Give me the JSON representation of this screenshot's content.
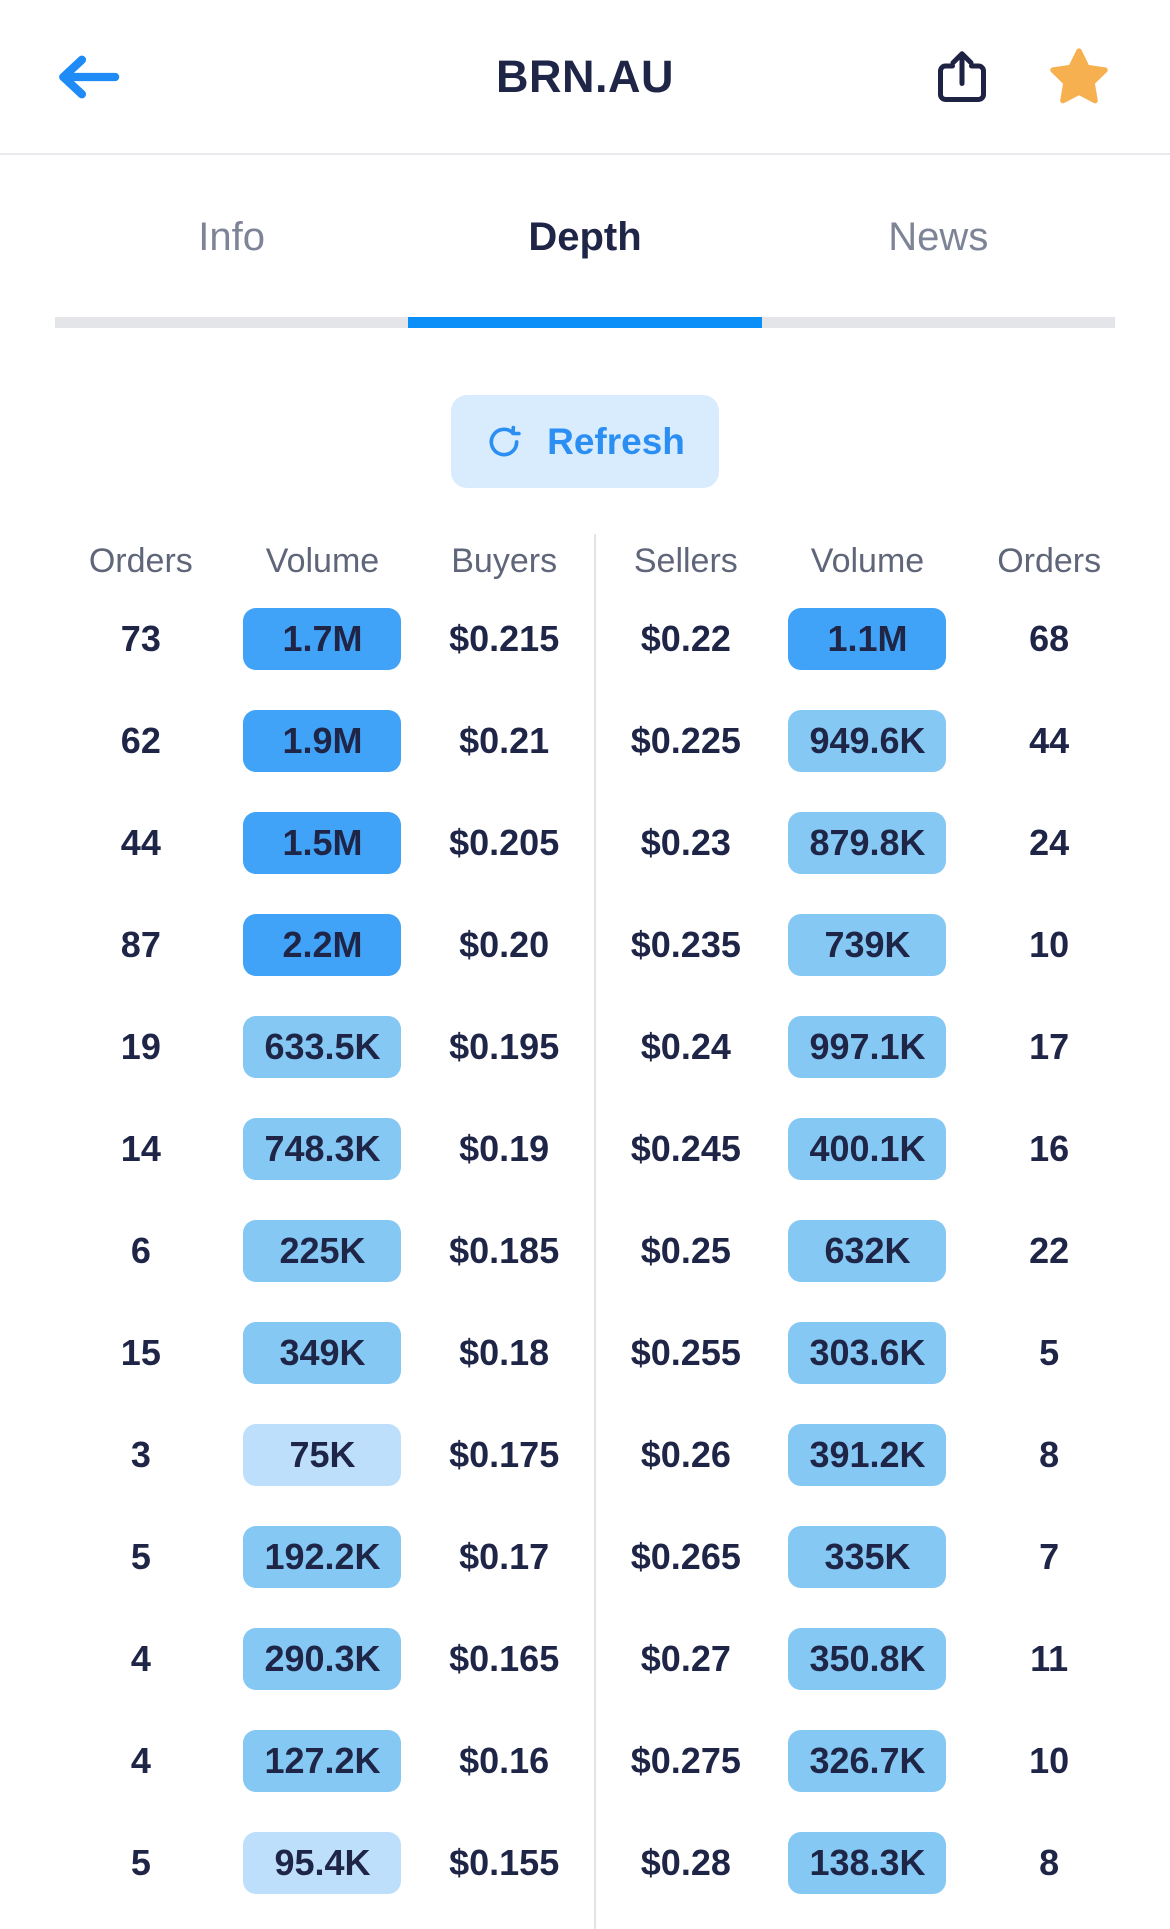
{
  "header": {
    "title": "BRN.AU"
  },
  "tabs": [
    {
      "label": "Info",
      "active": false
    },
    {
      "label": "Depth",
      "active": true
    },
    {
      "label": "News",
      "active": false
    }
  ],
  "refresh": {
    "label": "Refresh"
  },
  "depth_table": {
    "headers": [
      "Orders",
      "Volume",
      "Buyers",
      "Sellers",
      "Volume",
      "Orders"
    ],
    "rows": [
      {
        "bid_orders": "73",
        "bid_volume": "1.7M",
        "bid_level": "high",
        "bid_price": "$0.215",
        "ask_price": "$0.22",
        "ask_volume": "1.1M",
        "ask_level": "high",
        "ask_orders": "68"
      },
      {
        "bid_orders": "62",
        "bid_volume": "1.9M",
        "bid_level": "high",
        "bid_price": "$0.21",
        "ask_price": "$0.225",
        "ask_volume": "949.6K",
        "ask_level": "mid",
        "ask_orders": "44"
      },
      {
        "bid_orders": "44",
        "bid_volume": "1.5M",
        "bid_level": "high",
        "bid_price": "$0.205",
        "ask_price": "$0.23",
        "ask_volume": "879.8K",
        "ask_level": "mid",
        "ask_orders": "24"
      },
      {
        "bid_orders": "87",
        "bid_volume": "2.2M",
        "bid_level": "high",
        "bid_price": "$0.20",
        "ask_price": "$0.235",
        "ask_volume": "739K",
        "ask_level": "mid",
        "ask_orders": "10"
      },
      {
        "bid_orders": "19",
        "bid_volume": "633.5K",
        "bid_level": "mid",
        "bid_price": "$0.195",
        "ask_price": "$0.24",
        "ask_volume": "997.1K",
        "ask_level": "mid",
        "ask_orders": "17"
      },
      {
        "bid_orders": "14",
        "bid_volume": "748.3K",
        "bid_level": "mid",
        "bid_price": "$0.19",
        "ask_price": "$0.245",
        "ask_volume": "400.1K",
        "ask_level": "mid",
        "ask_orders": "16"
      },
      {
        "bid_orders": "6",
        "bid_volume": "225K",
        "bid_level": "mid",
        "bid_price": "$0.185",
        "ask_price": "$0.25",
        "ask_volume": "632K",
        "ask_level": "mid",
        "ask_orders": "22"
      },
      {
        "bid_orders": "15",
        "bid_volume": "349K",
        "bid_level": "mid",
        "bid_price": "$0.18",
        "ask_price": "$0.255",
        "ask_volume": "303.6K",
        "ask_level": "mid",
        "ask_orders": "5"
      },
      {
        "bid_orders": "3",
        "bid_volume": "75K",
        "bid_level": "low",
        "bid_price": "$0.175",
        "ask_price": "$0.26",
        "ask_volume": "391.2K",
        "ask_level": "mid",
        "ask_orders": "8"
      },
      {
        "bid_orders": "5",
        "bid_volume": "192.2K",
        "bid_level": "mid",
        "bid_price": "$0.17",
        "ask_price": "$0.265",
        "ask_volume": "335K",
        "ask_level": "mid",
        "ask_orders": "7"
      },
      {
        "bid_orders": "4",
        "bid_volume": "290.3K",
        "bid_level": "mid",
        "bid_price": "$0.165",
        "ask_price": "$0.27",
        "ask_volume": "350.8K",
        "ask_level": "mid",
        "ask_orders": "11"
      },
      {
        "bid_orders": "4",
        "bid_volume": "127.2K",
        "bid_level": "mid",
        "bid_price": "$0.16",
        "ask_price": "$0.275",
        "ask_volume": "326.7K",
        "ask_level": "mid",
        "ask_orders": "10"
      },
      {
        "bid_orders": "5",
        "bid_volume": "95.4K",
        "bid_level": "low",
        "bid_price": "$0.155",
        "ask_price": "$0.28",
        "ask_volume": "138.3K",
        "ask_level": "mid",
        "ask_orders": "8"
      }
    ]
  },
  "colors": {
    "accent_blue": "#1f8bf7",
    "tab_indicator": "#0a8ff9",
    "refresh_bg": "#d9ecfe",
    "refresh_fg": "#2b8ef3",
    "text_navy": "#1f2547",
    "header_gray": "#5f6679",
    "star_gold": "#f7b04f",
    "share_icon": "#1e2243",
    "volume_levels": {
      "high": "#41a3f7",
      "mid": "#84c8f3",
      "low": "#bedffb"
    }
  }
}
